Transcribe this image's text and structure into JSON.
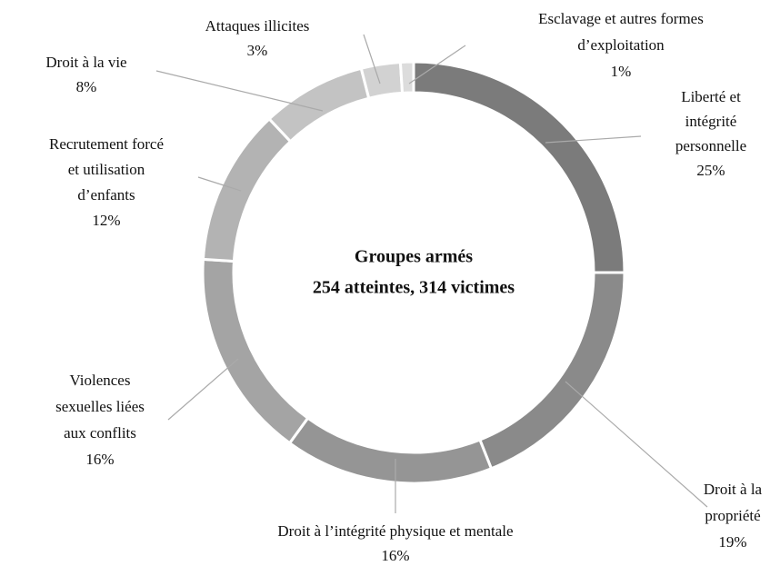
{
  "chart_data": {
    "type": "donut",
    "title": "Groupes armés",
    "subtitle": "254 atteintes, 314 victimes",
    "categories": [
      "Liberté et intégrité personnelle",
      "Droit à la propriété",
      "Droit à l’intégrité physique et mentale",
      "Violences sexuelles liées aux conflits",
      "Recrutement forcé et utilisation d’enfants",
      "Droit à la vie",
      "Attaques illicites",
      "Esclavage et autres formes d’exploitation"
    ],
    "values": [
      25,
      19,
      16,
      16,
      12,
      8,
      3,
      1
    ],
    "value_labels": [
      "25%",
      "19%",
      "16%",
      "16%",
      "12%",
      "8%",
      "3%",
      "1%"
    ],
    "colors": [
      "#7b7b7b",
      "#8a8a8a",
      "#959595",
      "#a4a4a4",
      "#b3b3b3",
      "#c3c3c3",
      "#d2d2d2",
      "#dcdcdc"
    ]
  }
}
